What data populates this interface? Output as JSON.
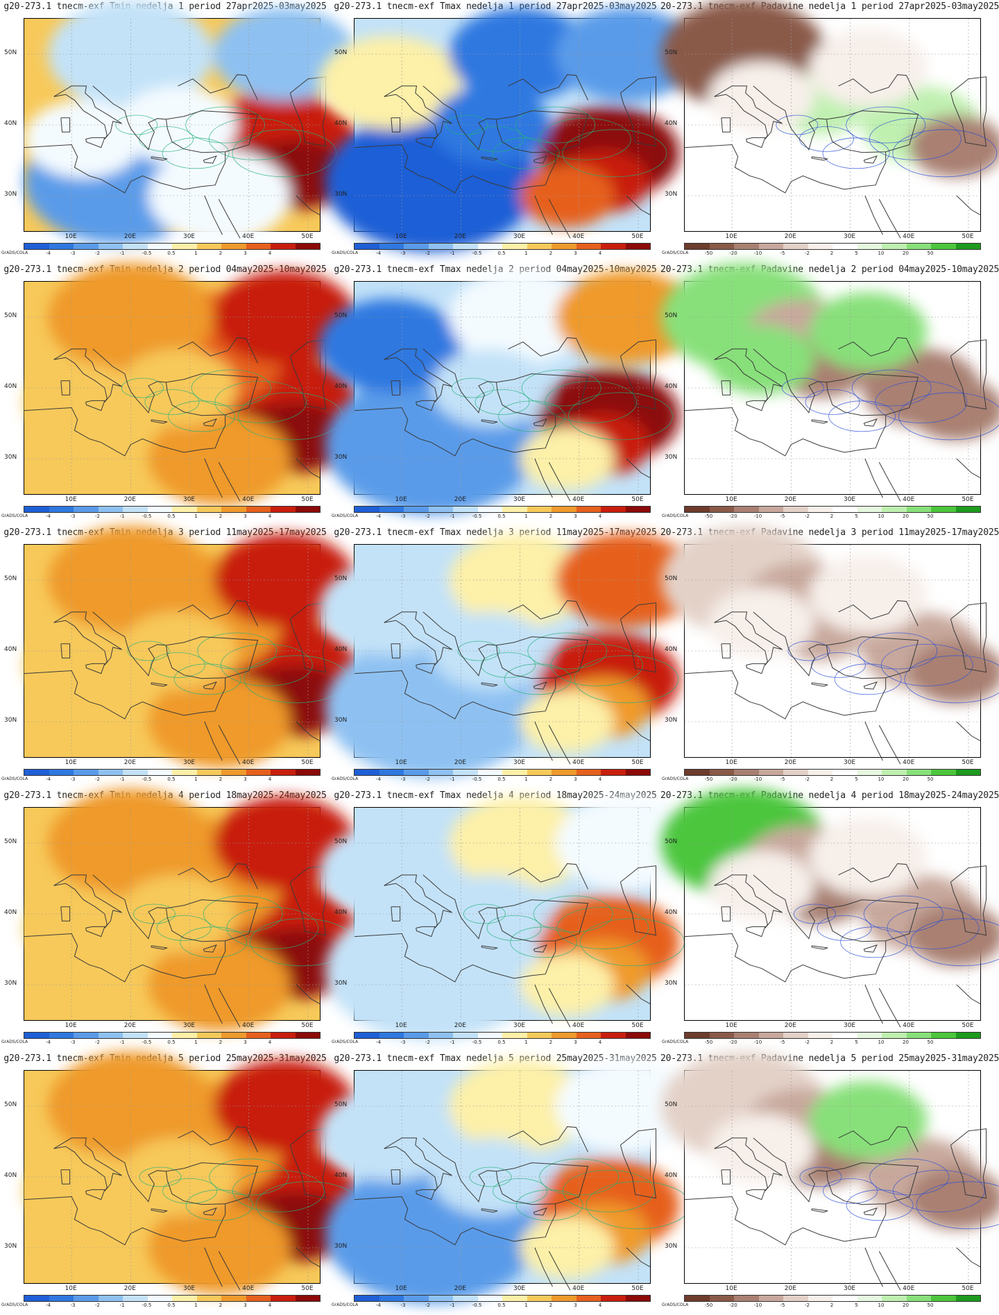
{
  "panels": [
    {
      "title": "g20-273.1 tnecm-exf Tmin nedelja 1 period 27apr2025-03may2025",
      "var": "tmin",
      "week": 1
    },
    {
      "title": "g20-273.1 tnecm-exf Tmax nedelja 1 period 27apr2025-03may2025",
      "var": "tmax",
      "week": 1
    },
    {
      "title": "20-273.1 tnecm-exf Padavine nedelja 1 period 27apr2025-03may2025",
      "var": "precip",
      "week": 1
    },
    {
      "title": "g20-273.1 tnecm-exf Tmin nedelja 2 period 04may2025-10may2025",
      "var": "tmin",
      "week": 2
    },
    {
      "title": "g20-273.1 tnecm-exf Tmax nedelja 2 period 04may2025-10may2025",
      "var": "tmax",
      "week": 2
    },
    {
      "title": "20-273.1 tnecm-exf Padavine nedelja 2 period 04may2025-10may2025",
      "var": "precip",
      "week": 2
    },
    {
      "title": "g20-273.1 tnecm-exf Tmin nedelja 3 period 11may2025-17may2025",
      "var": "tmin",
      "week": 3
    },
    {
      "title": "g20-273.1 tnecm-exf Tmax nedelja 3 period 11may2025-17may2025",
      "var": "tmax",
      "week": 3
    },
    {
      "title": "20-273.1 tnecm-exf Padavine nedelja 3 period 11may2025-17may2025",
      "var": "precip",
      "week": 3
    },
    {
      "title": "g20-273.1 tnecm-exf Tmin nedelja 4 period 18may2025-24may2025",
      "var": "tmin",
      "week": 4
    },
    {
      "title": "g20-273.1 tnecm-exf Tmax nedelja 4 period 18may2025-24may2025",
      "var": "tmax",
      "week": 4
    },
    {
      "title": "20-273.1 tnecm-exf Padavine nedelja 4 period 18may2025-24may2025",
      "var": "precip",
      "week": 4
    },
    {
      "title": "g20-273.1 tnecm-exf Tmin nedelja 5 period 25may2025-31may2025",
      "var": "tmin",
      "week": 5
    },
    {
      "title": "g20-273.1 tnecm-exf Tmax nedelja 5 period 25may2025-31may2025",
      "var": "tmax",
      "week": 5
    },
    {
      "title": "20-273.1 tnecm-exf Padavine nedelja 5 period 25may2025-31may2025",
      "var": "precip",
      "week": 5
    }
  ],
  "axis": {
    "x_ticks": [
      "10E",
      "20E",
      "30E",
      "40E",
      "50E"
    ],
    "y_ticks": [
      "50N",
      "40N",
      "30N"
    ]
  },
  "credit": "GrADS/COLA",
  "colorbars": {
    "temp": {
      "ticks": [
        "-4",
        "-3",
        "-2",
        "-1",
        "-0.5",
        "0.5",
        "1",
        "2",
        "3",
        "4"
      ],
      "colors": [
        "#1f5fd6",
        "#2f78e0",
        "#5a9be9",
        "#8ec1f2",
        "#c3e2f8",
        "#f4fbff",
        "#fdf0a8",
        "#f7c95a",
        "#ef9a2c",
        "#e6601e",
        "#c81e0e",
        "#8c0a08"
      ]
    },
    "precip": {
      "ticks": [
        "-50",
        "-20",
        "-10",
        "-5",
        "-2",
        "2",
        "5",
        "10",
        "20",
        "50"
      ],
      "colors": [
        "#6e3c2c",
        "#8a5a48",
        "#a98072",
        "#c8a89c",
        "#e3d1c8",
        "#f7efea",
        "#ffffff",
        "#e6f8e0",
        "#bff0b0",
        "#88e07a",
        "#4cc63c",
        "#1e9a1e"
      ]
    }
  }
}
